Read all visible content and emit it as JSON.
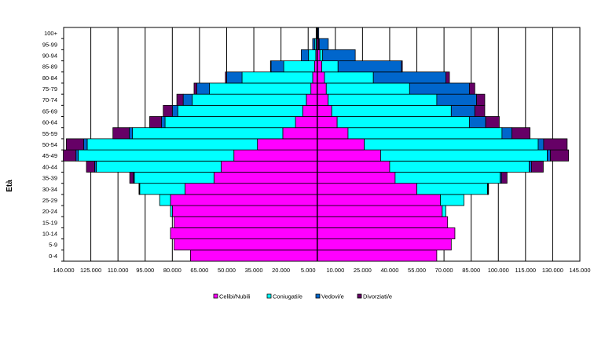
{
  "chart_data": {
    "type": "bar",
    "orientation": "horizontal-stacked-population-pyramid",
    "ylabel": "Età",
    "categories": [
      "0-4",
      "5-9",
      "10-14",
      "15-19",
      "20-24",
      "25-29",
      "30-34",
      "35-39",
      "40-44",
      "45-49",
      "50-54",
      "55-59",
      "60-64",
      "65-69",
      "70-74",
      "75-79",
      "80-84",
      "85-89",
      "90-94",
      "95-99",
      "100+"
    ],
    "x_ticks": [
      "140.000",
      "125.000",
      "110.000",
      "95.000",
      "80.000",
      "65.000",
      "50.000",
      "35.000",
      "20.000",
      "5.000",
      "10.000",
      "25.000",
      "40.000",
      "55.000",
      "70.000",
      "85.000",
      "100.000",
      "115.000",
      "130.000",
      "145.000"
    ],
    "xlim": [
      -140000,
      145000
    ],
    "grid": true,
    "legend_position": "bottom",
    "series": [
      {
        "name": "Celibi/Nubili",
        "color": "#ff00ff",
        "left": [
          70000,
          79000,
          81000,
          79000,
          80000,
          81000,
          73000,
          57000,
          53000,
          46000,
          33000,
          19000,
          12000,
          8000,
          6000,
          3500,
          2500,
          1500,
          800,
          500,
          200
        ],
        "right": [
          66000,
          74000,
          76000,
          72000,
          69000,
          68000,
          55000,
          43000,
          40000,
          35000,
          26000,
          17000,
          11000,
          8000,
          6000,
          5000,
          4000,
          2500,
          1500,
          800,
          300
        ]
      },
      {
        "name": "Coniugati/e",
        "color": "#00ffff",
        "left": [
          0,
          0,
          0,
          0,
          1000,
          6000,
          25000,
          44000,
          69000,
          86000,
          94000,
          83000,
          72000,
          69000,
          63000,
          56000,
          39000,
          17000,
          4000,
          800,
          100
        ],
        "right": [
          0,
          0,
          0,
          0,
          2000,
          13000,
          39000,
          58000,
          77000,
          92000,
          96000,
          85000,
          73000,
          66000,
          60000,
          46000,
          27000,
          9000,
          1500,
          300,
          50
        ]
      },
      {
        "name": "Vedovi/e",
        "color": "#0066cc",
        "left": [
          0,
          0,
          0,
          0,
          0,
          0,
          200,
          500,
          900,
          1200,
          2000,
          1800,
          2000,
          3000,
          5000,
          7000,
          8500,
          7000,
          4000,
          1200,
          300
        ],
        "right": [
          0,
          0,
          0,
          0,
          0,
          0,
          300,
          800,
          1300,
          1800,
          3000,
          5500,
          9000,
          13000,
          22000,
          33000,
          40000,
          35000,
          18000,
          5000,
          500
        ]
      },
      {
        "name": "Divorziati/e",
        "color": "#660066",
        "left": [
          0,
          0,
          0,
          0,
          0,
          0,
          200,
          2000,
          4500,
          7000,
          9500,
          9000,
          6500,
          5000,
          3500,
          1500,
          700,
          300,
          0,
          0,
          0
        ],
        "right": [
          0,
          0,
          0,
          0,
          0,
          0,
          300,
          3000,
          6500,
          10000,
          13000,
          10000,
          7500,
          5500,
          4500,
          3000,
          2000,
          500,
          0,
          0,
          0
        ]
      }
    ]
  }
}
